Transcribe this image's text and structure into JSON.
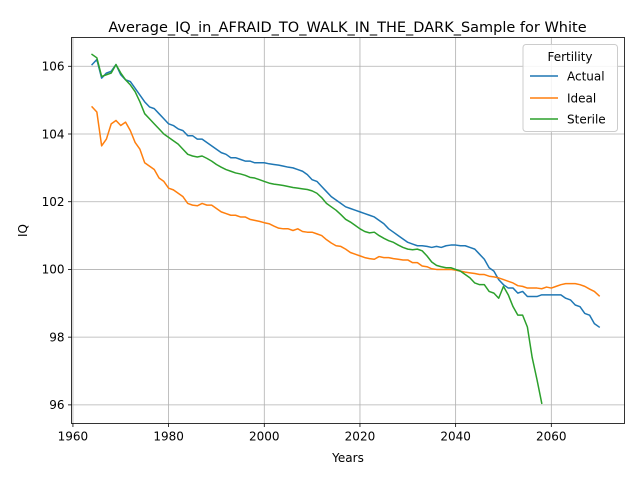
{
  "chart_data": {
    "type": "line",
    "title": "Average_IQ_in_AFRAID_TO_WALK_IN_THE_DARK_Sample for White",
    "xlabel": "Years",
    "ylabel": "IQ",
    "xlim": [
      1959.7,
      2075.3
    ],
    "ylim": [
      95.45,
      106.85
    ],
    "xticks": [
      1960,
      1980,
      2000,
      2020,
      2040,
      2060
    ],
    "yticks": [
      96,
      98,
      100,
      102,
      104,
      106
    ],
    "grid": true,
    "legend": {
      "title": "Fertility",
      "placement": "top-right"
    },
    "series": [
      {
        "name": "Actual",
        "color": "#1f77b4",
        "x": [
          1964,
          1965,
          1966,
          1967,
          1968,
          1969,
          1970,
          1971,
          1972,
          1973,
          1974,
          1975,
          1976,
          1977,
          1978,
          1979,
          1980,
          1981,
          1982,
          1983,
          1984,
          1985,
          1986,
          1987,
          1988,
          1989,
          1990,
          1991,
          1992,
          1993,
          1994,
          1995,
          1996,
          1997,
          1998,
          1999,
          2000,
          2001,
          2002,
          2003,
          2004,
          2005,
          2006,
          2007,
          2008,
          2009,
          2010,
          2011,
          2012,
          2013,
          2014,
          2015,
          2016,
          2017,
          2018,
          2019,
          2020,
          2021,
          2022,
          2023,
          2024,
          2025,
          2026,
          2027,
          2028,
          2029,
          2030,
          2031,
          2032,
          2033,
          2034,
          2035,
          2036,
          2037,
          2038,
          2039,
          2040,
          2041,
          2042,
          2043,
          2044,
          2045,
          2046,
          2047,
          2048,
          2049,
          2050,
          2051,
          2052,
          2053,
          2054,
          2055,
          2056,
          2057,
          2058,
          2059,
          2060,
          2061,
          2062,
          2063,
          2064,
          2065,
          2066,
          2067,
          2068,
          2069,
          2070
        ],
        "y": [
          106.05,
          106.2,
          105.65,
          105.8,
          105.85,
          106.05,
          105.75,
          105.6,
          105.55,
          105.35,
          105.15,
          104.95,
          104.8,
          104.75,
          104.6,
          104.45,
          104.3,
          104.25,
          104.15,
          104.1,
          103.95,
          103.95,
          103.85,
          103.85,
          103.75,
          103.65,
          103.55,
          103.45,
          103.4,
          103.3,
          103.3,
          103.25,
          103.2,
          103.2,
          103.15,
          103.15,
          103.15,
          103.12,
          103.1,
          103.08,
          103.05,
          103.02,
          103.0,
          102.95,
          102.9,
          102.8,
          102.65,
          102.6,
          102.45,
          102.3,
          102.15,
          102.05,
          101.95,
          101.85,
          101.8,
          101.75,
          101.7,
          101.65,
          101.6,
          101.55,
          101.45,
          101.35,
          101.2,
          101.1,
          101.0,
          100.9,
          100.8,
          100.75,
          100.7,
          100.7,
          100.68,
          100.65,
          100.68,
          100.65,
          100.7,
          100.72,
          100.72,
          100.7,
          100.7,
          100.65,
          100.6,
          100.45,
          100.3,
          100.05,
          99.95,
          99.7,
          99.55,
          99.45,
          99.45,
          99.3,
          99.35,
          99.2,
          99.2,
          99.2,
          99.25,
          99.25,
          99.25,
          99.25,
          99.25,
          99.15,
          99.1,
          98.95,
          98.9,
          98.7,
          98.65,
          98.4,
          98.3
        ]
      },
      {
        "name": "Ideal",
        "color": "#ff7f0e",
        "x": [
          1964,
          1965,
          1966,
          1967,
          1968,
          1969,
          1970,
          1971,
          1972,
          1973,
          1974,
          1975,
          1976,
          1977,
          1978,
          1979,
          1980,
          1981,
          1982,
          1983,
          1984,
          1985,
          1986,
          1987,
          1988,
          1989,
          1990,
          1991,
          1992,
          1993,
          1994,
          1995,
          1996,
          1997,
          1998,
          1999,
          2000,
          2001,
          2002,
          2003,
          2004,
          2005,
          2006,
          2007,
          2008,
          2009,
          2010,
          2011,
          2012,
          2013,
          2014,
          2015,
          2016,
          2017,
          2018,
          2019,
          2020,
          2021,
          2022,
          2023,
          2024,
          2025,
          2026,
          2027,
          2028,
          2029,
          2030,
          2031,
          2032,
          2033,
          2034,
          2035,
          2036,
          2037,
          2038,
          2039,
          2040,
          2041,
          2042,
          2043,
          2044,
          2045,
          2046,
          2047,
          2048,
          2049,
          2050,
          2051,
          2052,
          2053,
          2054,
          2055,
          2056,
          2057,
          2058,
          2059,
          2060,
          2061,
          2062,
          2063,
          2064,
          2065,
          2066,
          2067,
          2068,
          2069,
          2070
        ],
        "y": [
          104.8,
          104.65,
          103.65,
          103.85,
          104.3,
          104.4,
          104.25,
          104.35,
          104.1,
          103.75,
          103.55,
          103.15,
          103.05,
          102.95,
          102.7,
          102.6,
          102.4,
          102.35,
          102.25,
          102.15,
          101.95,
          101.9,
          101.88,
          101.95,
          101.9,
          101.9,
          101.8,
          101.7,
          101.65,
          101.6,
          101.6,
          101.55,
          101.55,
          101.48,
          101.45,
          101.42,
          101.38,
          101.35,
          101.28,
          101.22,
          101.2,
          101.2,
          101.15,
          101.2,
          101.12,
          101.1,
          101.1,
          101.05,
          101.0,
          100.88,
          100.78,
          100.7,
          100.68,
          100.6,
          100.5,
          100.45,
          100.4,
          100.35,
          100.32,
          100.3,
          100.38,
          100.35,
          100.35,
          100.32,
          100.3,
          100.28,
          100.28,
          100.2,
          100.2,
          100.1,
          100.08,
          100.02,
          100.0,
          100.0,
          100.0,
          100.0,
          99.98,
          99.95,
          99.92,
          99.9,
          99.88,
          99.85,
          99.85,
          99.8,
          99.78,
          99.75,
          99.7,
          99.65,
          99.6,
          99.52,
          99.5,
          99.45,
          99.45,
          99.45,
          99.43,
          99.48,
          99.45,
          99.5,
          99.55,
          99.58,
          99.58,
          99.58,
          99.55,
          99.5,
          99.42,
          99.35,
          99.22
        ]
      },
      {
        "name": "Sterile",
        "color": "#2ca02c",
        "x": [
          1964,
          1965,
          1966,
          1967,
          1968,
          1969,
          1970,
          1971,
          1972,
          1973,
          1974,
          1975,
          1976,
          1977,
          1978,
          1979,
          1980,
          1981,
          1982,
          1983,
          1984,
          1985,
          1986,
          1987,
          1988,
          1989,
          1990,
          1991,
          1992,
          1993,
          1994,
          1995,
          1996,
          1997,
          1998,
          1999,
          2000,
          2001,
          2002,
          2003,
          2004,
          2005,
          2006,
          2007,
          2008,
          2009,
          2010,
          2011,
          2012,
          2013,
          2014,
          2015,
          2016,
          2017,
          2018,
          2019,
          2020,
          2021,
          2022,
          2023,
          2024,
          2025,
          2026,
          2027,
          2028,
          2029,
          2030,
          2031,
          2032,
          2033,
          2034,
          2035,
          2036,
          2037,
          2038,
          2039,
          2040,
          2041,
          2042,
          2043,
          2044,
          2045,
          2046,
          2047,
          2048,
          2049,
          2050,
          2051,
          2052,
          2053,
          2054,
          2055,
          2056,
          2057,
          2058
        ],
        "y": [
          106.35,
          106.25,
          105.7,
          105.75,
          105.8,
          106.05,
          105.8,
          105.6,
          105.45,
          105.25,
          104.95,
          104.6,
          104.45,
          104.3,
          104.15,
          104.0,
          103.9,
          103.8,
          103.7,
          103.55,
          103.4,
          103.35,
          103.32,
          103.35,
          103.28,
          103.2,
          103.1,
          103.02,
          102.95,
          102.9,
          102.85,
          102.82,
          102.78,
          102.72,
          102.7,
          102.65,
          102.6,
          102.55,
          102.52,
          102.5,
          102.48,
          102.45,
          102.42,
          102.4,
          102.38,
          102.36,
          102.32,
          102.25,
          102.12,
          101.95,
          101.85,
          101.75,
          101.62,
          101.48,
          101.4,
          101.3,
          101.2,
          101.12,
          101.08,
          101.1,
          101.0,
          100.92,
          100.85,
          100.8,
          100.72,
          100.65,
          100.6,
          100.58,
          100.6,
          100.55,
          100.4,
          100.22,
          100.12,
          100.08,
          100.05,
          100.05,
          100.0,
          99.95,
          99.85,
          99.75,
          99.6,
          99.55,
          99.55,
          99.35,
          99.3,
          99.15,
          99.5,
          99.25,
          98.9,
          98.65,
          98.65,
          98.3,
          97.4,
          96.75,
          96.05
        ]
      }
    ]
  }
}
